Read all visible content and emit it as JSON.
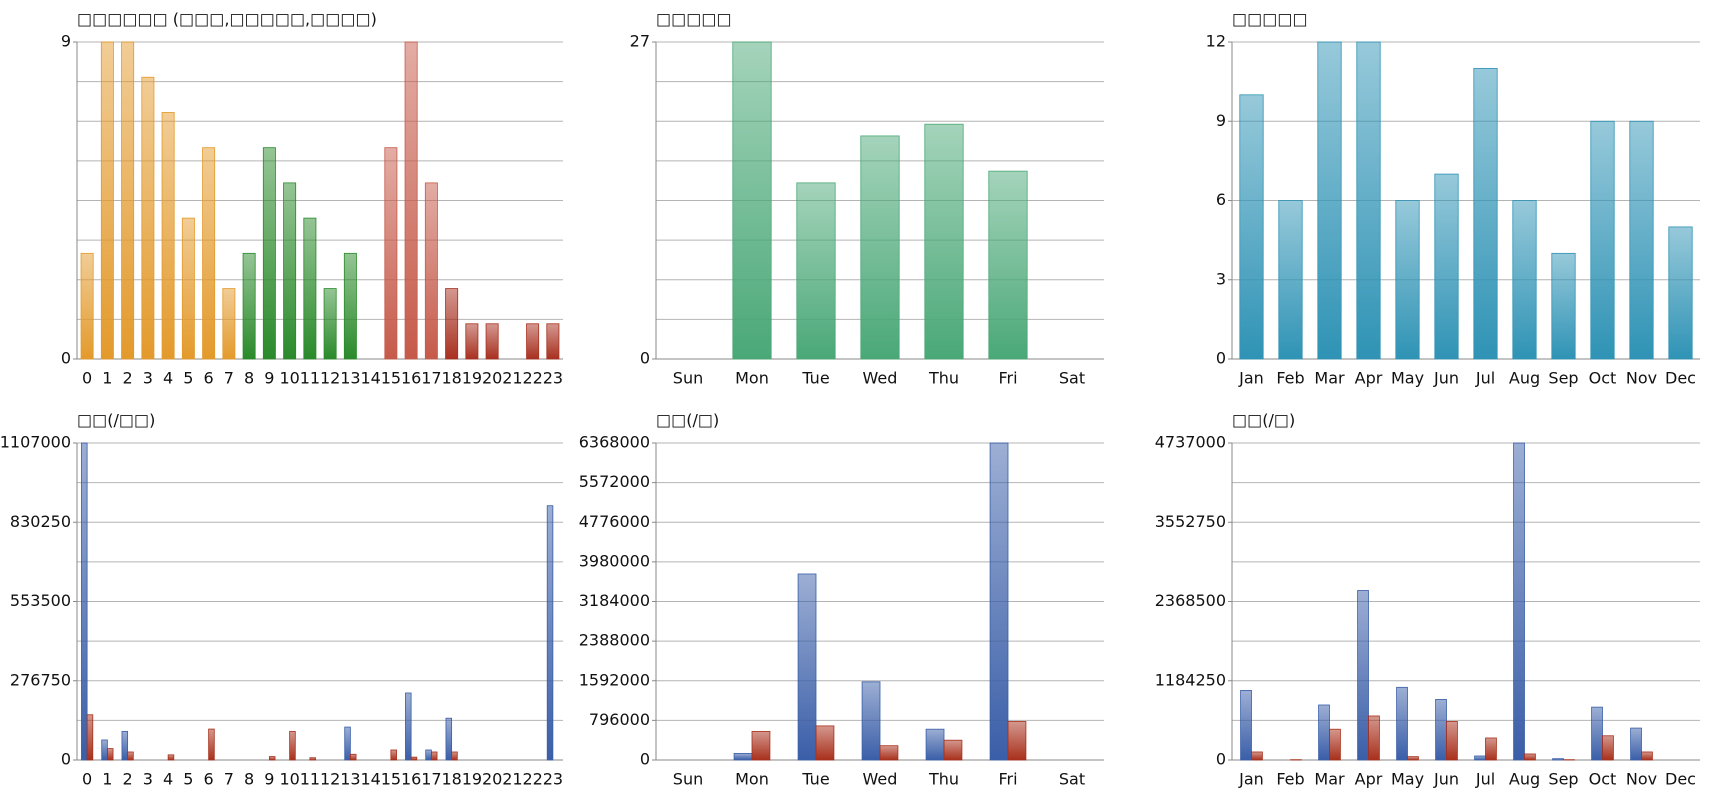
{
  "chart_data": [
    {
      "type": "bar",
      "title": "□□□□□□ (□□□,□□□□□,□□□□)",
      "categories": [
        "0",
        "1",
        "2",
        "3",
        "4",
        "5",
        "6",
        "7",
        "8",
        "9",
        "10",
        "11",
        "12",
        "13",
        "14",
        "15",
        "16",
        "17",
        "18",
        "19",
        "20",
        "21",
        "22",
        "23"
      ],
      "values": [
        3,
        9,
        9,
        8,
        7,
        4,
        6,
        2,
        3,
        6,
        5,
        4,
        2,
        3,
        0,
        6,
        9,
        5,
        2,
        1,
        1,
        0,
        1,
        1
      ],
      "colors": [
        "#e39a2c",
        "#e39a2c",
        "#e39a2c",
        "#e39a2c",
        "#e39a2c",
        "#e39a2c",
        "#e39a2c",
        "#e39a2c",
        "#2a8a2a",
        "#2a8a2a",
        "#2a8a2a",
        "#2a8a2a",
        "#2a8a2a",
        "#2a8a2a",
        "#c65a4a",
        "#c65a4a",
        "#c65a4a",
        "#c65a4a",
        "#a83020",
        "#a83020",
        "#a83020",
        "#a83020",
        "#a83020",
        "#a83020"
      ],
      "ylim": [
        0,
        9
      ],
      "yticks": [
        0,
        9
      ],
      "grid": true,
      "grid_divisions": 8
    },
    {
      "type": "bar",
      "title": "□□□□□",
      "categories": [
        "Sun",
        "Mon",
        "Tue",
        "Wed",
        "Thu",
        "Fri",
        "Sat"
      ],
      "values": [
        0,
        27,
        15,
        19,
        20,
        16,
        0
      ],
      "color": "#4aa877",
      "ylim": [
        0,
        27
      ],
      "yticks": [
        0,
        27
      ],
      "grid": true,
      "grid_divisions": 8
    },
    {
      "type": "bar",
      "title": "□□□□□",
      "categories": [
        "Jan",
        "Feb",
        "Mar",
        "Apr",
        "May",
        "Jun",
        "Jul",
        "Aug",
        "Sep",
        "Oct",
        "Nov",
        "Dec"
      ],
      "values": [
        10,
        6,
        12,
        12,
        6,
        7,
        11,
        6,
        4,
        9,
        9,
        5
      ],
      "color": "#2f93b5",
      "ylim": [
        0,
        12
      ],
      "yticks": [
        0,
        3,
        6,
        9,
        12
      ],
      "grid": true,
      "grid_divisions": 4
    },
    {
      "type": "grouped-bar",
      "title": "□□(/□□)",
      "categories": [
        "0",
        "1",
        "2",
        "3",
        "4",
        "5",
        "6",
        "7",
        "8",
        "9",
        "10",
        "11",
        "12",
        "13",
        "14",
        "15",
        "16",
        "17",
        "18",
        "19",
        "20",
        "21",
        "22",
        "23"
      ],
      "series": [
        {
          "color": "#3a5ea8",
          "values": [
            1107000,
            70000,
            100000,
            0,
            0,
            0,
            0,
            0,
            0,
            0,
            0,
            0,
            0,
            115000,
            0,
            0,
            234000,
            35000,
            146000,
            0,
            0,
            0,
            0,
            888000
          ]
        },
        {
          "color": "#a8301c",
          "values": [
            158000,
            40000,
            28000,
            0,
            18000,
            0,
            108000,
            0,
            0,
            12000,
            100000,
            8000,
            0,
            20000,
            0,
            35000,
            10000,
            28000,
            28000,
            0,
            0,
            0,
            0,
            0
          ]
        }
      ],
      "ylim": [
        0,
        1107000
      ],
      "yticks": [
        0,
        276750,
        553500,
        830250,
        1107000
      ],
      "grid": true,
      "grid_divisions": 8
    },
    {
      "type": "grouped-bar",
      "title": "□□(/□)",
      "categories": [
        "Sun",
        "Mon",
        "Tue",
        "Wed",
        "Thu",
        "Fri",
        "Sat"
      ],
      "series": [
        {
          "color": "#3a5ea8",
          "values": [
            0,
            133000,
            3737000,
            1570000,
            619000,
            6368000,
            0
          ]
        },
        {
          "color": "#a8301c",
          "values": [
            0,
            575000,
            685000,
            287000,
            398000,
            774000,
            0
          ]
        }
      ],
      "ylim": [
        0,
        6368000
      ],
      "yticks": [
        0,
        796000,
        1592000,
        2388000,
        3184000,
        3980000,
        4776000,
        5572000,
        6368000
      ],
      "grid": true,
      "grid_divisions": 8
    },
    {
      "type": "grouped-bar",
      "title": "□□(/□)",
      "categories": [
        "Jan",
        "Feb",
        "Mar",
        "Apr",
        "May",
        "Jun",
        "Jul",
        "Aug",
        "Sep",
        "Oct",
        "Nov",
        "Dec"
      ],
      "series": [
        {
          "color": "#3a5ea8",
          "values": [
            1040000,
            0,
            822000,
            2533000,
            1086000,
            905000,
            60000,
            4737000,
            20000,
            790000,
            477000,
            0
          ]
        },
        {
          "color": "#a8301c",
          "values": [
            120000,
            5000,
            460000,
            658000,
            50000,
            576000,
            329000,
            90000,
            5000,
            362000,
            120000,
            0
          ]
        }
      ],
      "ylim": [
        0,
        4737000
      ],
      "yticks": [
        0,
        1184250,
        2368500,
        3552750,
        4737000
      ],
      "grid": true,
      "grid_divisions": 8
    }
  ]
}
